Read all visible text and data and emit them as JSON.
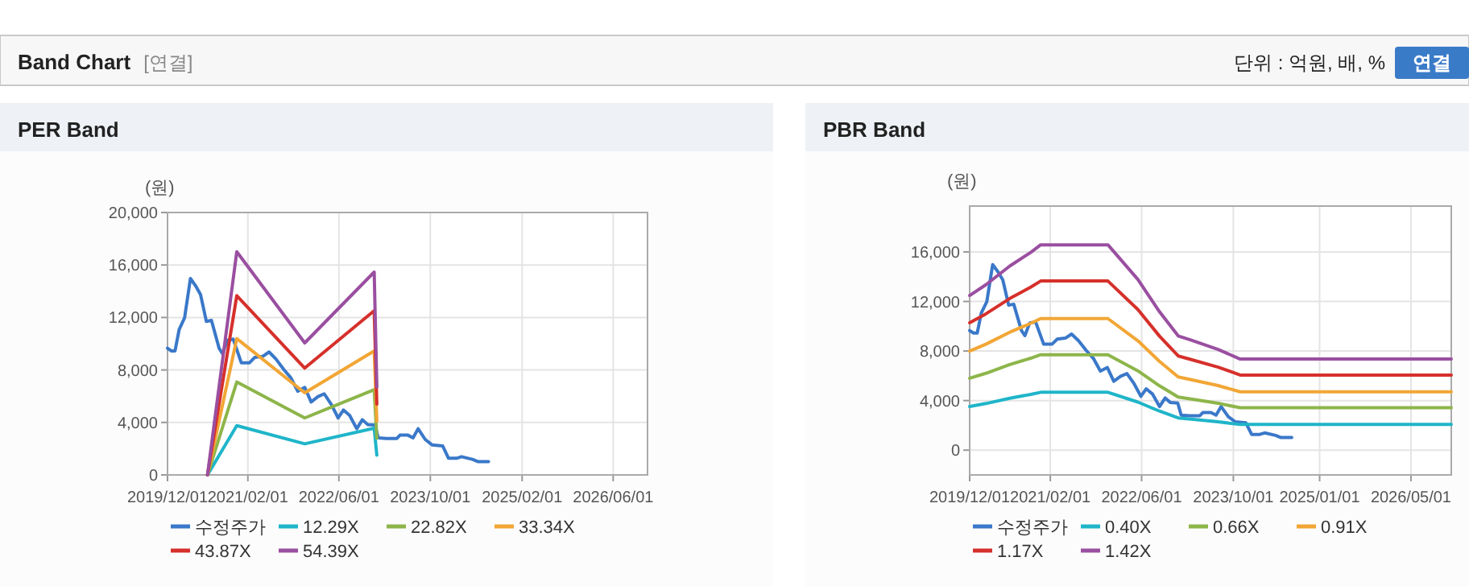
{
  "chart_data": [
    {
      "type": "other",
      "title": "Band Chart",
      "annotations": [
        "[연결]",
        "단위 : 억원, 배, %",
        "연결"
      ]
    },
    {
      "type": "line",
      "title": "PER Band",
      "ylabel": "(원)",
      "xlim": [
        "2019-12-01",
        "2026-12-01"
      ],
      "ylim": [
        0,
        20000
      ],
      "xticks": [
        {
          "value": "2019-12-01",
          "label": "2019/12/01"
        },
        {
          "value": "2021-02-01",
          "label": "2021/02/01"
        },
        {
          "value": "2022-06-01",
          "label": "2022/06/01"
        },
        {
          "value": "2023-10-01",
          "label": "2023/10/01"
        },
        {
          "value": "2025-02-01",
          "label": "2025/02/01"
        },
        {
          "value": "2026-06-01",
          "label": "2026/06/01"
        }
      ],
      "yticks": [
        {
          "value": 0,
          "label": "0"
        },
        {
          "value": 4000,
          "label": "4,000"
        },
        {
          "value": 8000,
          "label": "8,000"
        },
        {
          "value": 12000,
          "label": "12,000"
        },
        {
          "value": 16000,
          "label": "16,000"
        },
        {
          "value": 20000,
          "label": "20,000"
        }
      ],
      "grid": true,
      "legend": "bottom",
      "marker": "none",
      "line_style": "solid",
      "series": [
        {
          "name": "수정주가",
          "color": "#3a78c9",
          "x": [
            "2019-12-01",
            "2019-12-22",
            "2020-01-10",
            "2020-02-01",
            "2020-03-01",
            "2020-04-01",
            "2020-05-01",
            "2020-05-25",
            "2020-06-25",
            "2020-07-22",
            "2020-09-01",
            "2020-09-19",
            "2020-10-15",
            "2020-11-15",
            "2020-12-28",
            "2021-02-10",
            "2021-03-10",
            "2021-04-22",
            "2021-05-25",
            "2021-07-01",
            "2021-08-12",
            "2021-09-18",
            "2021-10-25",
            "2021-12-01",
            "2022-01-04",
            "2022-02-10",
            "2022-03-15",
            "2022-04-22",
            "2022-05-28",
            "2022-06-25",
            "2022-07-28",
            "2022-09-04",
            "2022-10-04",
            "2022-11-01",
            "2022-12-10",
            "2022-12-28",
            "2023-02-10",
            "2023-04-06",
            "2023-04-22",
            "2023-06-04",
            "2023-07-01",
            "2023-07-28",
            "2023-09-04",
            "2023-10-10",
            "2023-12-06",
            "2024-01-06",
            "2024-02-18",
            "2024-03-15",
            "2024-05-12",
            "2024-06-10",
            "2024-08-06"
          ],
          "values": [
            9650,
            9450,
            9450,
            11080,
            11980,
            14970,
            14360,
            13740,
            11700,
            11780,
            9650,
            9240,
            10270,
            10350,
            8550,
            8550,
            8960,
            9040,
            9370,
            8830,
            8020,
            7400,
            6380,
            6670,
            5560,
            5970,
            6180,
            5360,
            4340,
            4950,
            4540,
            3520,
            4210,
            3840,
            3800,
            2820,
            2780,
            2780,
            3030,
            3030,
            2820,
            3520,
            2700,
            2290,
            2210,
            1270,
            1270,
            1390,
            1190,
            1020,
            1020
          ]
        },
        {
          "name": "12.29X",
          "color": "#1fb5c9",
          "x": [
            "2020-07-01",
            "2020-12-04",
            "2021-12-01",
            "2022-12-06",
            "2022-12-20"
          ],
          "values": [
            0,
            3760,
            2370,
            3560,
            1500
          ]
        },
        {
          "name": "22.82X",
          "color": "#8db54a",
          "x": [
            "2020-07-01",
            "2020-12-04",
            "2021-12-01",
            "2022-12-06",
            "2022-12-20"
          ],
          "values": [
            0,
            7080,
            4340,
            6500,
            2800
          ]
        },
        {
          "name": "33.34X",
          "color": "#f2a635",
          "x": [
            "2020-07-01",
            "2020-12-04",
            "2021-12-01",
            "2022-12-06",
            "2022-12-20"
          ],
          "values": [
            0,
            10390,
            6260,
            9450,
            4100
          ]
        },
        {
          "name": "43.87X",
          "color": "#d6302b",
          "x": [
            "2020-07-01",
            "2020-12-04",
            "2021-12-01",
            "2022-12-06",
            "2022-12-20"
          ],
          "values": [
            0,
            13660,
            8140,
            12520,
            5400
          ]
        },
        {
          "name": "54.39X",
          "color": "#9a4fa0",
          "x": [
            "2020-07-01",
            "2020-12-04",
            "2021-12-01",
            "2022-12-06",
            "2022-12-20"
          ],
          "values": [
            0,
            17010,
            10060,
            15460,
            6700
          ]
        }
      ]
    },
    {
      "type": "line",
      "title": "PBR Band",
      "ylabel": "(원)",
      "xlim": [
        "2019-12-01",
        "2026-12-01"
      ],
      "ylim": [
        -2000,
        19700
      ],
      "xticks": [
        {
          "value": "2019-12-01",
          "label": "2019/12/01"
        },
        {
          "value": "2021-02-01",
          "label": "2021/02/01"
        },
        {
          "value": "2022-06-01",
          "label": "2022/06/01"
        },
        {
          "value": "2023-10-01",
          "label": "2023/10/01"
        },
        {
          "value": "2025-01-01",
          "label": "2025/01/01"
        },
        {
          "value": "2026-05-01",
          "label": "2026/05/01"
        }
      ],
      "yticks": [
        {
          "value": 0,
          "label": "0"
        },
        {
          "value": 4000,
          "label": "4,000"
        },
        {
          "value": 8000,
          "label": "8,000"
        },
        {
          "value": 12000,
          "label": "12,000"
        },
        {
          "value": 16000,
          "label": "16,000"
        }
      ],
      "grid": true,
      "legend": "bottom",
      "marker": "none",
      "line_style": "solid",
      "series": [
        {
          "name": "수정주가",
          "color": "#3a78c9",
          "x": [
            "2019-12-01",
            "2019-12-22",
            "2020-01-10",
            "2020-02-01",
            "2020-03-01",
            "2020-04-01",
            "2020-05-01",
            "2020-05-25",
            "2020-06-25",
            "2020-07-22",
            "2020-09-01",
            "2020-09-19",
            "2020-10-15",
            "2020-11-15",
            "2020-12-28",
            "2021-02-10",
            "2021-03-10",
            "2021-04-22",
            "2021-05-25",
            "2021-07-01",
            "2021-08-12",
            "2021-09-18",
            "2021-10-25",
            "2021-12-01",
            "2022-01-04",
            "2022-02-10",
            "2022-03-15",
            "2022-04-22",
            "2022-05-28",
            "2022-06-25",
            "2022-07-28",
            "2022-09-04",
            "2022-10-04",
            "2022-11-01",
            "2022-12-10",
            "2022-12-28",
            "2023-02-10",
            "2023-04-06",
            "2023-04-22",
            "2023-06-04",
            "2023-07-01",
            "2023-07-28",
            "2023-09-04",
            "2023-10-10",
            "2023-12-06",
            "2024-01-06",
            "2024-02-18",
            "2024-03-15",
            "2024-05-12",
            "2024-06-10",
            "2024-08-06"
          ],
          "values": [
            9650,
            9450,
            9450,
            11080,
            11980,
            14970,
            14360,
            13740,
            11700,
            11780,
            9650,
            9240,
            10270,
            10350,
            8550,
            8550,
            8960,
            9040,
            9370,
            8830,
            8020,
            7400,
            6380,
            6670,
            5560,
            5970,
            6180,
            5360,
            4340,
            4950,
            4540,
            3520,
            4210,
            3840,
            3800,
            2820,
            2780,
            2780,
            3030,
            3030,
            2820,
            3520,
            2700,
            2290,
            2210,
            1270,
            1270,
            1390,
            1190,
            1020,
            1020
          ]
        },
        {
          "name": "0.40X",
          "color": "#1fb5c9",
          "x": [
            "2019-12-01",
            "2020-02-25",
            "2020-07-01",
            "2020-10-20",
            "2020-12-12",
            "2021-12-04",
            "2022-05-12",
            "2022-09-04",
            "2022-12-12",
            "2023-02-20",
            "2023-07-12",
            "2023-11-06",
            "2026-12-01"
          ],
          "values": [
            3520,
            3760,
            4190,
            4500,
            4670,
            4670,
            3880,
            3150,
            2600,
            2500,
            2290,
            2070,
            2070
          ]
        },
        {
          "name": "0.66X",
          "color": "#8db54a",
          "x": [
            "2019-12-01",
            "2020-02-25",
            "2020-07-01",
            "2020-10-20",
            "2020-12-12",
            "2021-12-04",
            "2022-05-12",
            "2022-09-04",
            "2022-12-12",
            "2023-02-20",
            "2023-07-12",
            "2023-11-06",
            "2026-12-01"
          ],
          "values": [
            5800,
            6200,
            6910,
            7420,
            7700,
            7700,
            6400,
            5190,
            4290,
            4120,
            3780,
            3420,
            3420
          ]
        },
        {
          "name": "0.91X",
          "color": "#f2a635",
          "x": [
            "2019-12-01",
            "2020-02-25",
            "2020-07-01",
            "2020-10-20",
            "2020-12-12",
            "2021-12-04",
            "2022-05-12",
            "2022-09-04",
            "2022-12-12",
            "2023-02-20",
            "2023-07-12",
            "2023-11-06",
            "2026-12-01"
          ],
          "values": [
            8000,
            8550,
            9520,
            10230,
            10620,
            10620,
            8830,
            7160,
            5910,
            5680,
            5210,
            4710,
            4710
          ]
        },
        {
          "name": "1.17X",
          "color": "#d6302b",
          "x": [
            "2019-12-01",
            "2020-02-25",
            "2020-07-01",
            "2020-10-20",
            "2020-12-12",
            "2021-12-04",
            "2022-05-12",
            "2022-09-04",
            "2022-12-12",
            "2023-02-20",
            "2023-07-12",
            "2023-11-06",
            "2026-12-01"
          ],
          "values": [
            10280,
            11000,
            12240,
            13150,
            13650,
            13650,
            11350,
            9200,
            7600,
            7310,
            6700,
            6060,
            6060
          ]
        },
        {
          "name": "1.42X",
          "color": "#9a4fa0",
          "x": [
            "2019-12-01",
            "2020-02-25",
            "2020-07-01",
            "2020-10-20",
            "2020-12-12",
            "2021-12-04",
            "2022-05-12",
            "2022-09-04",
            "2022-12-12",
            "2023-02-20",
            "2023-07-12",
            "2023-11-06",
            "2026-12-01"
          ],
          "values": [
            12480,
            13350,
            14860,
            15960,
            16570,
            16570,
            13780,
            11170,
            9220,
            8870,
            8130,
            7350,
            7350
          ]
        }
      ]
    }
  ]
}
